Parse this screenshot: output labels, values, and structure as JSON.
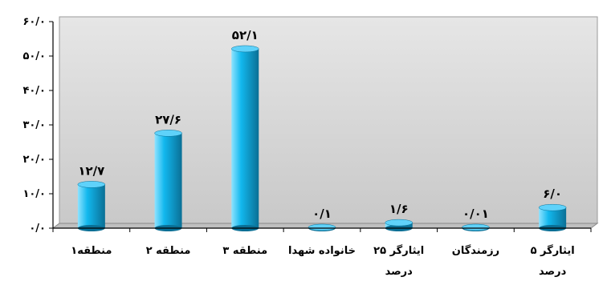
{
  "chart_data": {
    "type": "bar",
    "categories": [
      "منطقه۱",
      "منطقه ۲",
      "منطقه ۳",
      "خانواده شهدا",
      "ایثارگر ۲۵ درصد",
      "رزمندگان",
      "ایثارگر ۵ درصد"
    ],
    "values": [
      12.7,
      27.6,
      52.1,
      0.1,
      1.6,
      0.01,
      6.0
    ],
    "data_labels": [
      "۱۲/۷",
      "۲۷/۶",
      "۵۲/۱",
      "۰/۱",
      "۱/۶",
      "۰/۰۱",
      "۶/۰"
    ],
    "y_ticks": [
      0,
      10,
      20,
      30,
      40,
      50,
      60
    ],
    "y_tick_labels": [
      "۰/۰",
      "۱۰/۰",
      "۲۰/۰",
      "۳۰/۰",
      "۴۰/۰",
      "۵۰/۰",
      "۶۰/۰"
    ],
    "ylim": [
      0,
      60
    ],
    "grid": false,
    "colors": {
      "bar_light": "#8fe3ff",
      "bar_main": "#12b8ee",
      "bar_dark": "#0a6f95",
      "bar_top": "#5fd2fa",
      "wall": "#d9d9d9",
      "floor": "#bfbfbf",
      "axis": "#000000"
    }
  }
}
